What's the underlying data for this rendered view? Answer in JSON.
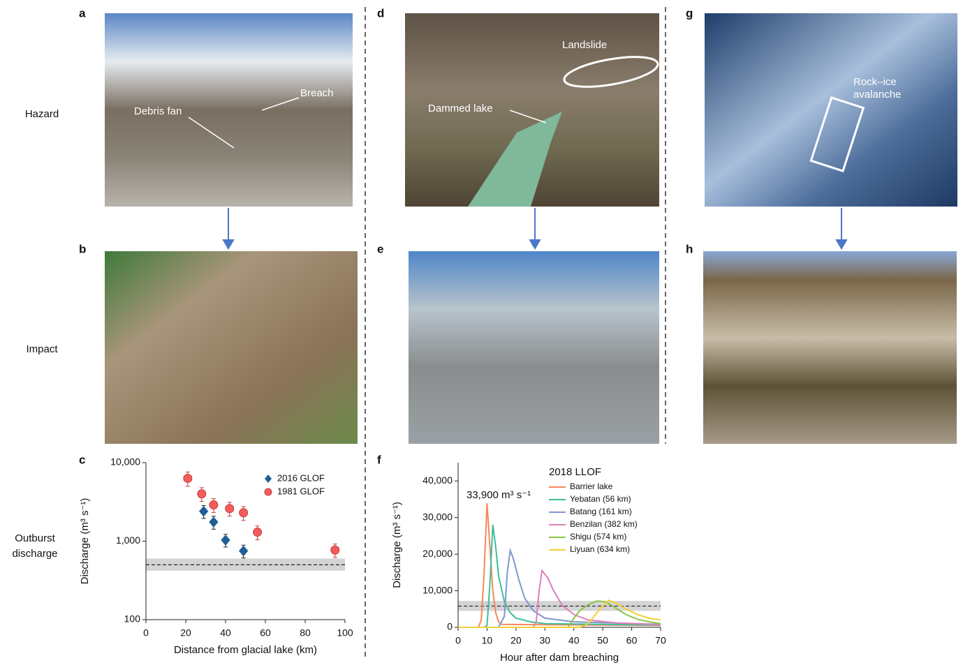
{
  "panel_labels": {
    "a": "a",
    "b": "b",
    "c": "c",
    "d": "d",
    "e": "e",
    "f": "f",
    "g": "g",
    "h": "h"
  },
  "row_labels": [
    "Hazard",
    "Impact",
    "Outburst",
    "discharge"
  ],
  "photo_annotations": {
    "a": [
      "Breach",
      "Debris fan"
    ],
    "d": [
      "Landslide",
      "Dammed lake"
    ],
    "g": [
      "Rock–ice",
      "avalanche"
    ]
  },
  "chart_data": [
    {
      "type": "scatter",
      "x_label": "Distance from glacial lake (km)",
      "y_label": "Discharge (m³ s⁻¹)",
      "log_y": true,
      "xlim": [
        0,
        100
      ],
      "xticks": [
        0,
        20,
        40,
        60,
        80,
        100
      ],
      "ylim": [
        100,
        10000
      ],
      "yticks": [
        100,
        {
          "value": 1000,
          "label": "1,000"
        },
        {
          "value": 10000,
          "label": "10,000"
        }
      ],
      "legend": "upper right",
      "reference_line": {
        "value": 500,
        "band": [
          420,
          600
        ]
      },
      "series": [
        {
          "name": "2016 GLOF",
          "color": "#1f5f96",
          "marker": "diamond",
          "x": [
            29,
            34,
            40,
            49
          ],
          "values": [
            2400,
            1750,
            1030,
            750
          ],
          "errors": [
            450,
            330,
            190,
            140
          ]
        },
        {
          "name": "1981 GLOF",
          "color": "#f25c5c",
          "marker": "circle",
          "x": [
            21,
            28,
            34,
            42,
            49,
            56,
            95
          ],
          "values": [
            6300,
            4000,
            2900,
            2600,
            2300,
            1300,
            770
          ],
          "errors": [
            1300,
            800,
            580,
            520,
            460,
            260,
            150
          ]
        }
      ]
    },
    {
      "type": "line",
      "x_label": "Hour after dam breaching",
      "y_label": "Discharge (m³ s⁻¹)",
      "annotation": "33,900 m³ s⁻¹",
      "legend_title": "2018 LLOF",
      "legend": "upper right",
      "xlim": [
        0,
        70
      ],
      "xticks": [
        0,
        10,
        20,
        30,
        40,
        50,
        60,
        70
      ],
      "ylim": [
        0,
        45000
      ],
      "yticks": [
        0,
        {
          "value": 10000,
          "label": "10,000"
        },
        {
          "value": 20000,
          "label": "20,000"
        },
        {
          "value": 30000,
          "label": "30,000"
        },
        {
          "value": 40000,
          "label": "40,000"
        }
      ],
      "reference_line": {
        "value": 5800,
        "band": [
          4500,
          7200
        ]
      },
      "series": [
        {
          "name": "Barrier lake",
          "color": "#f4875a",
          "x": [
            0,
            7,
            8,
            9,
            10,
            11,
            12,
            13,
            14,
            15,
            70
          ],
          "values": [
            0,
            0,
            2000,
            15000,
            33900,
            22000,
            10000,
            4000,
            1500,
            800,
            500
          ]
        },
        {
          "name": "Yebatan (56 km)",
          "color": "#3dbf9a",
          "x": [
            0,
            9,
            10,
            11,
            12,
            13,
            14,
            16,
            18,
            20,
            25,
            30,
            70
          ],
          "values": [
            0,
            0,
            500,
            12000,
            28000,
            22000,
            14000,
            7000,
            4000,
            2500,
            1500,
            1000,
            600
          ]
        },
        {
          "name": "Batang (161 km)",
          "color": "#7f97cc",
          "x": [
            0,
            14,
            16,
            17,
            18,
            19,
            21,
            23,
            26,
            30,
            40,
            70
          ],
          "values": [
            0,
            0,
            3000,
            15000,
            21000,
            19000,
            13000,
            8000,
            4500,
            2500,
            1500,
            800
          ]
        },
        {
          "name": "Benzilan (382 km)",
          "color": "#e07fb8",
          "x": [
            0,
            26,
            27,
            28,
            29,
            31,
            33,
            36,
            40,
            45,
            55,
            70
          ],
          "values": [
            0,
            0,
            1500,
            10000,
            15500,
            13500,
            10000,
            6000,
            3500,
            2000,
            1200,
            700
          ]
        },
        {
          "name": "Shigu (574 km)",
          "color": "#8fc24a",
          "x": [
            0,
            38,
            40,
            42,
            45,
            48,
            51,
            54,
            58,
            62,
            66,
            70
          ],
          "values": [
            0,
            0,
            2500,
            4500,
            6200,
            7200,
            7000,
            5500,
            3500,
            2200,
            1500,
            1000
          ]
        },
        {
          "name": "Liyuan (634 km)",
          "color": "#f2d038",
          "x": [
            0,
            42,
            44,
            46,
            49,
            52,
            55,
            58,
            62,
            66,
            70
          ],
          "values": [
            0,
            0,
            500,
            2000,
            5000,
            7400,
            6500,
            5000,
            3500,
            2500,
            2000
          ]
        }
      ]
    }
  ]
}
